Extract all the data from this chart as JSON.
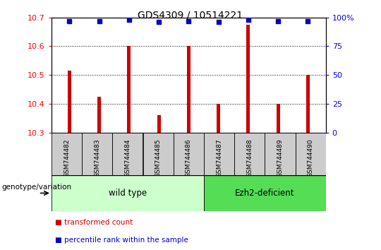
{
  "title": "GDS4309 / 10514221",
  "categories": [
    "GSM744482",
    "GSM744483",
    "GSM744484",
    "GSM744485",
    "GSM744486",
    "GSM744487",
    "GSM744488",
    "GSM744489",
    "GSM744490"
  ],
  "transformed_counts": [
    10.515,
    10.425,
    10.6,
    10.36,
    10.6,
    10.4,
    10.675,
    10.4,
    10.5
  ],
  "percentile_ranks": [
    97,
    97,
    98,
    96,
    97,
    96,
    98,
    97,
    97
  ],
  "ylim_left": [
    10.3,
    10.7
  ],
  "ylim_right": [
    0,
    100
  ],
  "yticks_left": [
    10.3,
    10.4,
    10.5,
    10.6,
    10.7
  ],
  "yticks_right": [
    0,
    25,
    50,
    75,
    100
  ],
  "yticklabels_right": [
    "0",
    "25",
    "50",
    "75",
    "100%"
  ],
  "bar_color": "#cc0000",
  "dot_color": "#0000cc",
  "wild_type_indices": [
    0,
    1,
    2,
    3,
    4
  ],
  "ezh2_indices": [
    5,
    6,
    7,
    8
  ],
  "wild_type_label": "wild type",
  "ezh2_label": "Ezh2-deficient",
  "wild_type_color": "#ccffcc",
  "ezh2_color": "#55dd55",
  "sample_box_color": "#cccccc",
  "legend_bar_label": "transformed count",
  "legend_dot_label": "percentile rank within the sample",
  "genotype_label": "genotype/variation"
}
